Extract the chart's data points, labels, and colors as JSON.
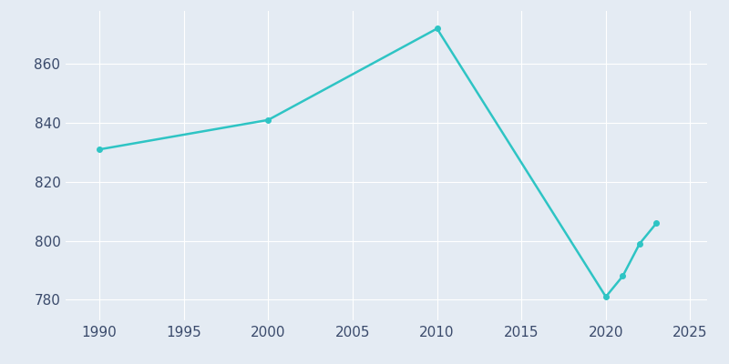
{
  "years": [
    1990,
    2000,
    2010,
    2020,
    2021,
    2022,
    2023
  ],
  "population": [
    831,
    841,
    872,
    781,
    788,
    799,
    806
  ],
  "line_color": "#2EC4C4",
  "background_color": "#E4EBF3",
  "grid_color": "#FFFFFF",
  "text_color": "#3A4A6B",
  "xlim": [
    1988,
    2026
  ],
  "ylim": [
    773,
    878
  ],
  "xticks": [
    1990,
    1995,
    2000,
    2005,
    2010,
    2015,
    2020,
    2025
  ],
  "yticks": [
    780,
    800,
    820,
    840,
    860
  ],
  "linewidth": 1.8,
  "markersize": 4
}
